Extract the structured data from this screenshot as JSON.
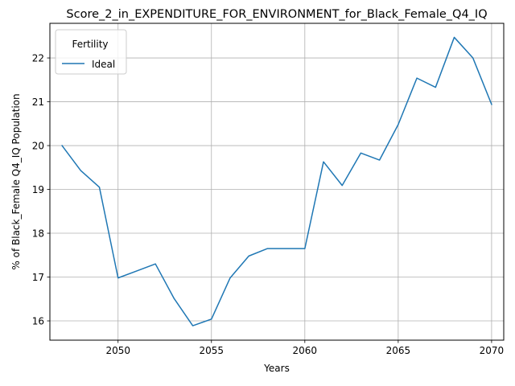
{
  "chart_data": {
    "type": "line",
    "title": "Score_2_in_EXPENDITURE_FOR_ENVIRONMENT_for_Black_Female_Q4_IQ",
    "xlabel": "Years",
    "ylabel": "% of Black_Female Q4_IQ Population",
    "xlim": [
      2046.35,
      2070.65
    ],
    "ylim": [
      15.56,
      22.79
    ],
    "xticks": [
      2050,
      2055,
      2060,
      2065,
      2070
    ],
    "yticks": [
      16,
      17,
      18,
      19,
      20,
      21,
      22
    ],
    "grid": true,
    "legend": {
      "title": "Fertility",
      "placement": "upper-left"
    },
    "x": [
      2047,
      2048,
      2049,
      2050,
      2051,
      2052,
      2053,
      2054,
      2055,
      2056,
      2057,
      2058,
      2059,
      2060,
      2061,
      2062,
      2063,
      2064,
      2065,
      2066,
      2067,
      2068,
      2069,
      2070
    ],
    "series": [
      {
        "name": "Ideal",
        "color": "#1f77b4",
        "values": [
          20.0,
          19.43,
          19.05,
          16.98,
          17.14,
          17.3,
          16.51,
          15.89,
          16.04,
          16.98,
          17.48,
          17.65,
          17.65,
          17.65,
          19.63,
          19.09,
          19.83,
          19.67,
          20.48,
          21.54,
          21.33,
          22.47,
          22.0,
          20.94
        ]
      }
    ]
  }
}
